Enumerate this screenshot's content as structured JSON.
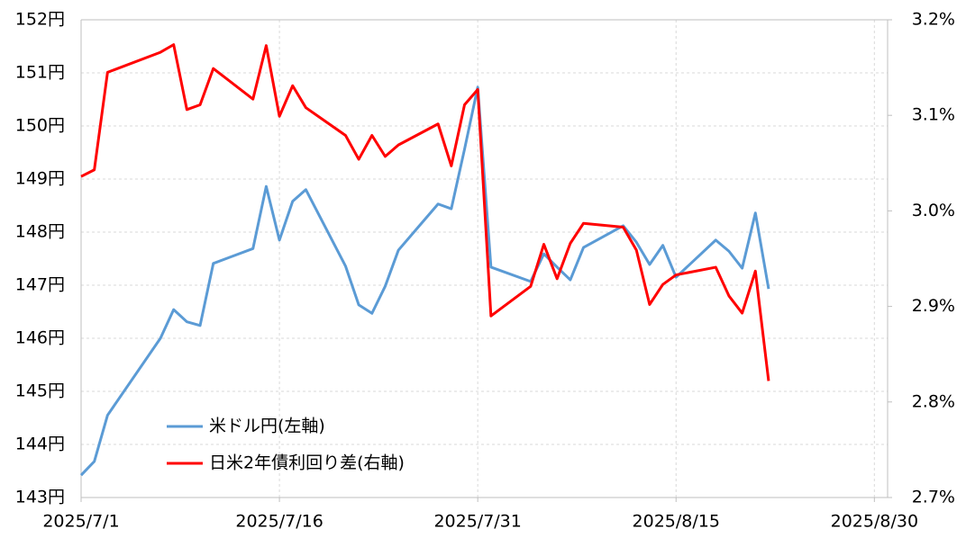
{
  "chart_data": {
    "type": "line",
    "x": [
      "2025/7/1",
      "2025/7/2",
      "2025/7/3",
      "2025/7/7",
      "2025/7/8",
      "2025/7/9",
      "2025/7/10",
      "2025/7/11",
      "2025/7/14",
      "2025/7/15",
      "2025/7/16",
      "2025/7/17",
      "2025/7/18",
      "2025/7/21",
      "2025/7/22",
      "2025/7/23",
      "2025/7/24",
      "2025/7/25",
      "2025/7/28",
      "2025/7/29",
      "2025/7/30",
      "2025/7/31",
      "2025/8/1",
      "2025/8/4",
      "2025/8/5",
      "2025/8/6",
      "2025/8/7",
      "2025/8/8",
      "2025/8/11",
      "2025/8/12",
      "2025/8/13",
      "2025/8/14",
      "2025/8/15",
      "2025/8/18",
      "2025/8/19",
      "2025/8/20",
      "2025/8/21",
      "2025/8/22"
    ],
    "series": [
      {
        "name": "米ドル円(左軸)",
        "color": "#5b9bd5",
        "values": [
          143.42,
          143.68,
          144.55,
          146.0,
          146.54,
          146.31,
          146.24,
          147.41,
          147.69,
          148.86,
          147.85,
          148.58,
          148.8,
          147.36,
          146.63,
          146.47,
          146.98,
          147.66,
          148.53,
          148.44,
          149.56,
          150.73,
          147.34,
          147.07,
          147.59,
          147.34,
          147.1,
          147.71,
          148.12,
          147.81,
          147.39,
          147.75,
          147.15,
          147.85,
          147.64,
          147.32,
          148.36,
          146.93
        ]
      },
      {
        "name": "日米2年債利回り差(右軸)",
        "color": "#ff0000",
        "axis": "y2",
        "values": [
          3.036,
          3.043,
          3.145,
          3.166,
          3.174,
          3.106,
          3.111,
          3.149,
          3.117,
          3.173,
          3.099,
          3.131,
          3.108,
          3.079,
          3.054,
          3.079,
          3.057,
          3.069,
          3.091,
          3.047,
          3.111,
          3.127,
          2.89,
          2.921,
          2.965,
          2.929,
          2.966,
          2.987,
          2.983,
          2.959,
          2.902,
          2.923,
          2.933,
          2.941,
          2.911,
          2.893,
          2.937,
          2.822
        ]
      }
    ],
    "xlim": [
      "2025/7/1",
      "2025/8/31"
    ],
    "xticks": [
      "2025/7/1",
      "2025/7/16",
      "2025/7/31",
      "2025/8/15",
      "2025/8/30"
    ],
    "ylim": [
      143,
      152
    ],
    "yticks": [
      {
        "value": 143,
        "label": "143円"
      },
      {
        "value": 144,
        "label": "144円"
      },
      {
        "value": 145,
        "label": "145円"
      },
      {
        "value": 146,
        "label": "146円"
      },
      {
        "value": 147,
        "label": "147円"
      },
      {
        "value": 148,
        "label": "148円"
      },
      {
        "value": 149,
        "label": "149円"
      },
      {
        "value": 150,
        "label": "150円"
      },
      {
        "value": 151,
        "label": "151円"
      },
      {
        "value": 152,
        "label": "152円"
      }
    ],
    "y2lim": [
      2.7,
      3.2
    ],
    "y2ticks": [
      {
        "value": 2.7,
        "label": "2.7%"
      },
      {
        "value": 2.8,
        "label": "2.8%"
      },
      {
        "value": 2.9,
        "label": "2.9%"
      },
      {
        "value": 3.0,
        "label": "3.0%"
      },
      {
        "value": 3.1,
        "label": "3.1%"
      },
      {
        "value": 3.2,
        "label": "3.2%"
      }
    ],
    "grid": true,
    "legend": "lower left"
  }
}
